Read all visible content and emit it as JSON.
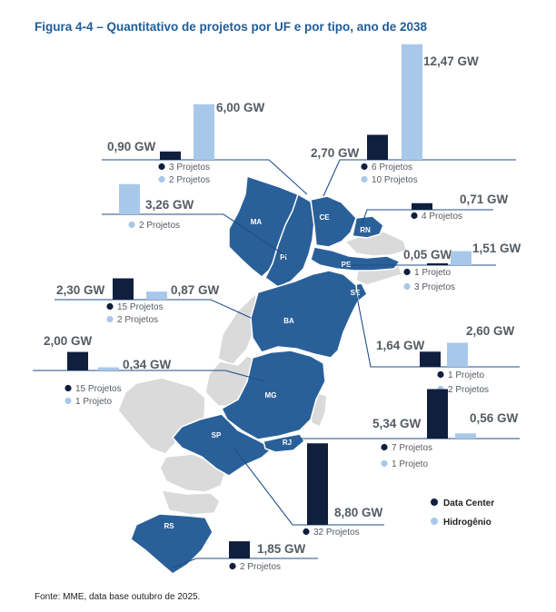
{
  "figure": {
    "title": "Figura 4-4 – Quantitativo de projetos por UF e por tipo, ano de 2038",
    "source": "Fonte: MME, data base outubro de 2025."
  },
  "colors": {
    "data_center": "#0f1f3d",
    "hidrogenio": "#a8c8ea",
    "state_highlight": "#2a6099",
    "state_other": "#dadada",
    "title": "#1f5c99"
  },
  "chart_data": {
    "type": "bar",
    "title": "Figura 4-4 – Quantitativo de projetos por UF e por tipo, ano de 2038",
    "value_unit": "GW",
    "legend": {
      "placement": "bottom-right",
      "entries": [
        {
          "key": "data_center",
          "label": "Data Center"
        },
        {
          "key": "hidrogenio",
          "label": "Hidrogênio"
        }
      ]
    },
    "series": [
      {
        "name": "Data Center",
        "key": "data_center"
      },
      {
        "name": "Hidrogênio",
        "key": "hidrogenio"
      }
    ],
    "states": [
      {
        "uf": "MA",
        "data_center": {
          "gw": 0.9,
          "gw_label": "0,90 GW",
          "projects": "3 Projetos"
        },
        "hidrogenio": {
          "gw": 6.0,
          "gw_label": "6,00 GW",
          "projects": "2 Projetos"
        }
      },
      {
        "uf": "PI",
        "data_center": null,
        "hidrogenio": {
          "gw": 3.26,
          "gw_label": "3,26 GW",
          "projects": "2 Projetos"
        }
      },
      {
        "uf": "CE",
        "data_center": {
          "gw": 2.7,
          "gw_label": "2,70 GW",
          "projects": "6 Projetos"
        },
        "hidrogenio": {
          "gw": 12.47,
          "gw_label": "12,47 GW",
          "projects": "10 Projetos"
        }
      },
      {
        "uf": "RN",
        "data_center": {
          "gw": 0.71,
          "gw_label": "0,71 GW",
          "projects": "4 Projetos"
        },
        "hidrogenio": null
      },
      {
        "uf": "PE",
        "data_center": {
          "gw": 0.05,
          "gw_label": "0,05 GW",
          "projects": "1 Projeto"
        },
        "hidrogenio": {
          "gw": 1.51,
          "gw_label": "1,51 GW",
          "projects": "3 Projetos"
        }
      },
      {
        "uf": "SE",
        "data_center": {
          "gw": 1.64,
          "gw_label": "1,64 GW",
          "projects": "1 Projeto"
        },
        "hidrogenio": {
          "gw": 2.6,
          "gw_label": "2,60 GW",
          "projects": "2 Projetos"
        }
      },
      {
        "uf": "BA",
        "data_center": {
          "gw": 2.3,
          "gw_label": "2,30 GW",
          "projects": "15 Projetos"
        },
        "hidrogenio": {
          "gw": 0.87,
          "gw_label": "0,87 GW",
          "projects": "2 Projetos"
        }
      },
      {
        "uf": "MG",
        "data_center": {
          "gw": 2.0,
          "gw_label": "2,00 GW",
          "projects": "15 Projetos"
        },
        "hidrogenio": {
          "gw": 0.34,
          "gw_label": "0,34 GW",
          "projects": "1 Projeto"
        }
      },
      {
        "uf": "RJ",
        "data_center": {
          "gw": 5.34,
          "gw_label": "5,34 GW",
          "projects": "7 Projetos"
        },
        "hidrogenio": {
          "gw": 0.56,
          "gw_label": "0,56 GW",
          "projects": "1 Projeto"
        }
      },
      {
        "uf": "SP",
        "data_center": {
          "gw": 8.8,
          "gw_label": "8,80 GW",
          "projects": "32 Projetos"
        },
        "hidrogenio": null
      },
      {
        "uf": "RS",
        "data_center": {
          "gw": 1.85,
          "gw_label": "1,85 GW",
          "projects": "2 Projetos"
        },
        "hidrogenio": null
      }
    ]
  }
}
